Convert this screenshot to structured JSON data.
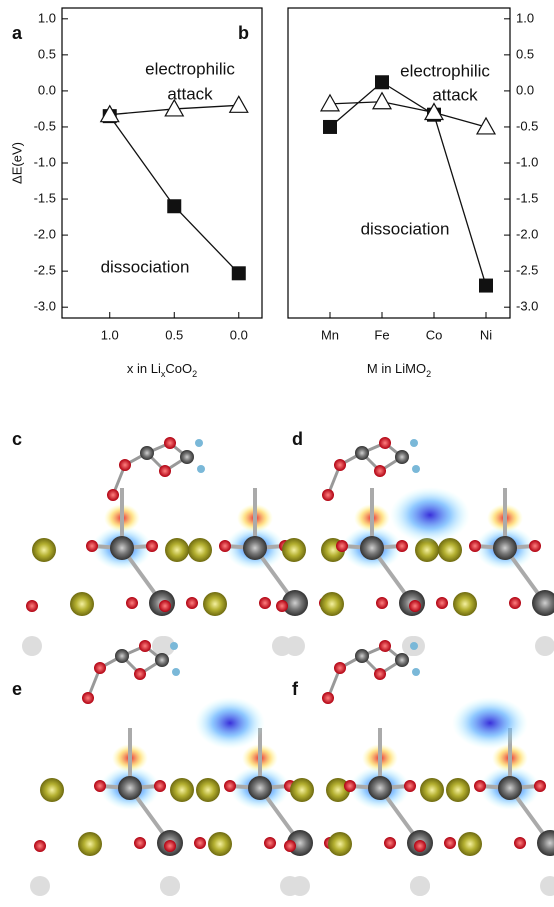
{
  "chart_data": [
    {
      "type": "line",
      "panel": "a",
      "ylabel": "ΔE(eV)",
      "xlabel_parts": [
        {
          "text": "x in Li"
        },
        {
          "text": "x",
          "sub": true
        },
        {
          "text": "CoO"
        },
        {
          "text": "2",
          "sub": true
        }
      ],
      "x": [
        1.0,
        0.5,
        0.0
      ],
      "xlim": [
        1.37,
        -0.18
      ],
      "xticks": [
        {
          "value": 1.0,
          "label": "1.0"
        },
        {
          "value": 0.5,
          "label": "0.5"
        },
        {
          "value": 0.0,
          "label": "0.0"
        }
      ],
      "ylim": [
        -3.15,
        1.15
      ],
      "yticks": [
        {
          "value": 1.0,
          "label": "1.0"
        },
        {
          "value": 0.5,
          "label": "0.5"
        },
        {
          "value": 0.0,
          "label": "0.0"
        },
        {
          "value": -0.5,
          "label": "-0.5"
        },
        {
          "value": -1.0,
          "label": "-1.0"
        },
        {
          "value": -1.5,
          "label": "-1.5"
        },
        {
          "value": -2.0,
          "label": "-2.0"
        },
        {
          "value": -2.5,
          "label": "-2.5"
        },
        {
          "value": -3.0,
          "label": "-3.0"
        }
      ],
      "series": [
        {
          "marker": "square",
          "color": "#111111",
          "values": [
            -0.35,
            -1.6,
            -2.53
          ]
        },
        {
          "marker": "triangle",
          "color": "#111111",
          "values": [
            -0.33,
            -0.25,
            -0.2
          ]
        }
      ],
      "annotations": [
        "electrophilic",
        "attack",
        "dissociation"
      ]
    },
    {
      "type": "line",
      "panel": "b",
      "xlabel_parts": [
        {
          "text": "M in LiMO"
        },
        {
          "text": "2",
          "sub": true
        }
      ],
      "categories": [
        "Mn",
        "Fe",
        "Co",
        "Ni"
      ],
      "ylim": [
        -3.15,
        1.15
      ],
      "yticks": [
        {
          "value": 1.0,
          "label": "1.0"
        },
        {
          "value": 0.5,
          "label": "0.5"
        },
        {
          "value": 0.0,
          "label": "0.0"
        },
        {
          "value": -0.5,
          "label": "-0.5"
        },
        {
          "value": -1.0,
          "label": "-1.0"
        },
        {
          "value": -1.5,
          "label": "-1.5"
        },
        {
          "value": -2.0,
          "label": "-2.0"
        },
        {
          "value": -2.5,
          "label": "-2.5"
        },
        {
          "value": -3.0,
          "label": "-3.0"
        }
      ],
      "series": [
        {
          "marker": "square",
          "color": "#111111",
          "values": [
            -0.5,
            0.12,
            -0.33,
            -2.7
          ]
        },
        {
          "marker": "triangle",
          "color": "#111111",
          "values": [
            -0.18,
            -0.15,
            -0.3,
            -0.5
          ]
        }
      ],
      "annotations": [
        "electrophilic",
        "attack",
        "dissociation"
      ]
    }
  ],
  "panels": [
    "c",
    "d",
    "e",
    "f"
  ]
}
